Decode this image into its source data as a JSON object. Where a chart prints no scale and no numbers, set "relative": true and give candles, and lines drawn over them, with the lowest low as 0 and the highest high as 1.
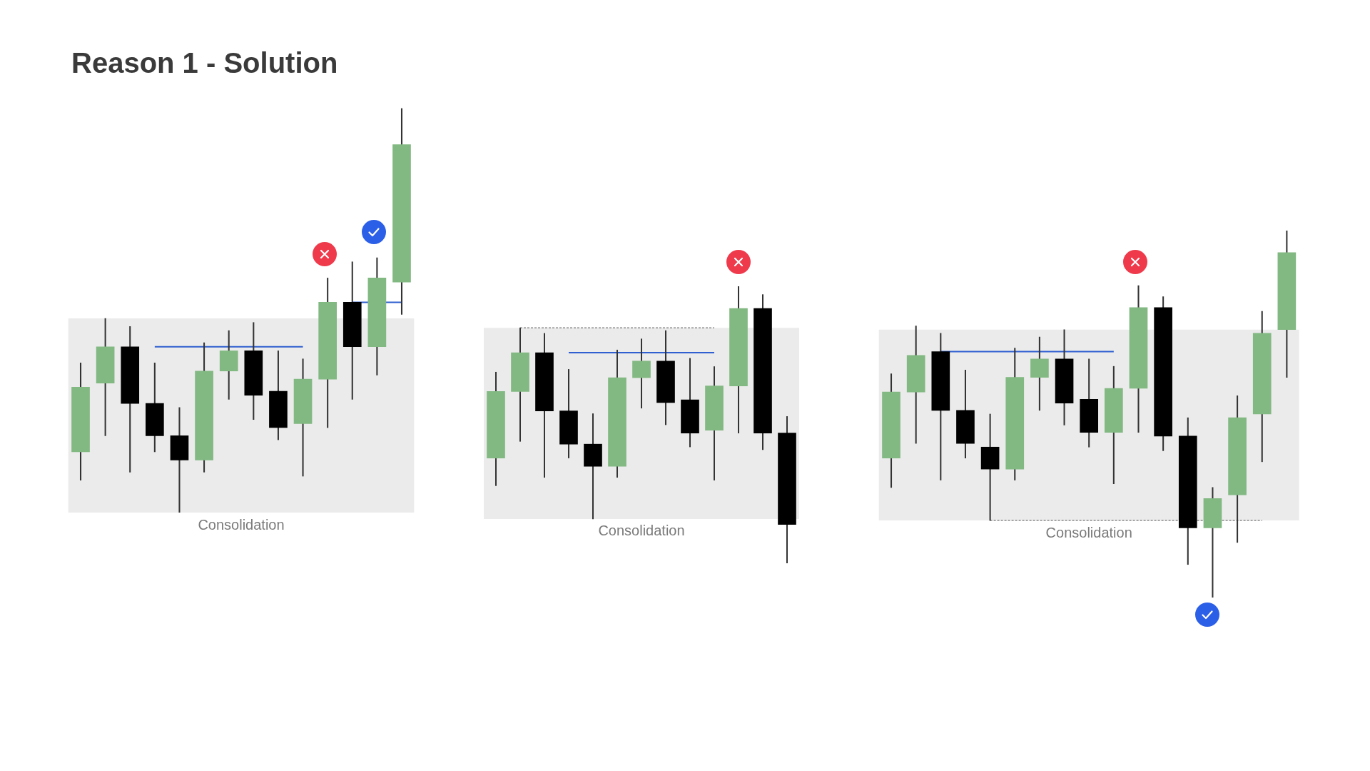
{
  "chart_data": [
    {
      "type": "candlestick",
      "title": "Reason 1 - Solution",
      "relative": true,
      "categories": [
        null,
        null,
        null,
        null,
        null,
        null,
        null,
        null,
        null,
        null,
        null,
        null,
        null,
        null
      ],
      "ohlc": [
        [
          0.15,
          0.37,
          0.08,
          0.31
        ],
        [
          0.32,
          0.48,
          0.19,
          0.41
        ],
        [
          0.41,
          0.46,
          0.1,
          0.27
        ],
        [
          0.27,
          0.37,
          0.15,
          0.19
        ],
        [
          0.19,
          0.26,
          0,
          0.13
        ],
        [
          0.13,
          0.42,
          0.1,
          0.35
        ],
        [
          0.35,
          0.45,
          0.28,
          0.4
        ],
        [
          0.4,
          0.47,
          0.23,
          0.29
        ],
        [
          0.3,
          0.4,
          0.18,
          0.21
        ],
        [
          0.22,
          0.38,
          0.09,
          0.33
        ],
        [
          0.33,
          0.58,
          0.21,
          0.52
        ],
        [
          0.52,
          0.62,
          0.28,
          0.41
        ],
        [
          0.41,
          0.63,
          0.34,
          0.58
        ],
        [
          0.57,
          1,
          0.49,
          0.91
        ]
      ],
      "colors": [
        "#82b882",
        "#82b882",
        "#000000",
        "#000000",
        "#000000",
        "#82b882",
        "#82b882",
        "#000000",
        "#000000",
        "#82b882",
        "#82b882",
        "#000000",
        "#82b882",
        "#82b882"
      ],
      "series": [
        {
          "type": "line",
          "color": "#2f5fd0",
          "values": [
            null,
            null,
            null,
            0.41,
            0.41,
            0.41,
            0.41,
            0.41,
            0.41,
            0.41,
            null,
            null,
            null,
            null
          ]
        },
        {
          "type": "line",
          "color": "#2f5fd0",
          "values": [
            null,
            null,
            null,
            null,
            null,
            null,
            null,
            null,
            null,
            null,
            null,
            0.52,
            null,
            0.52
          ]
        }
      ],
      "bands": [
        {
          "axis": "y",
          "from": 0,
          "to": 0.48,
          "label": "Consolidation",
          "color": "#ebebeb"
        }
      ]
    },
    {
      "type": "candlestick",
      "relative": true,
      "categories": [
        null,
        null,
        null,
        null,
        null,
        null,
        null,
        null,
        null,
        null,
        null,
        null,
        null
      ],
      "ohlc": [
        [
          0.38,
          0.69,
          0.28,
          0.62
        ],
        [
          0.62,
          0.85,
          0.44,
          0.76
        ],
        [
          0.76,
          0.83,
          0.31,
          0.55
        ],
        [
          0.55,
          0.7,
          0.38,
          0.43
        ],
        [
          0.43,
          0.54,
          0.16,
          0.35
        ],
        [
          0.35,
          0.77,
          0.31,
          0.67
        ],
        [
          0.67,
          0.81,
          0.56,
          0.73
        ],
        [
          0.73,
          0.84,
          0.5,
          0.58
        ],
        [
          0.59,
          0.74,
          0.42,
          0.47
        ],
        [
          0.48,
          0.71,
          0.3,
          0.64
        ],
        [
          0.64,
          1,
          0.47,
          0.92
        ],
        [
          0.92,
          0.97,
          0.41,
          0.47
        ],
        [
          0.47,
          0.53,
          0,
          0.14
        ]
      ],
      "colors": [
        "#82b882",
        "#82b882",
        "#000000",
        "#000000",
        "#000000",
        "#82b882",
        "#82b882",
        "#000000",
        "#000000",
        "#82b882",
        "#82b882",
        "#000000",
        "#000000"
      ],
      "series": [
        {
          "type": "line",
          "color": "#2f5fd0",
          "values": [
            null,
            null,
            null,
            0.76,
            0.76,
            0.76,
            0.76,
            0.76,
            0.76,
            0.76,
            null,
            null,
            null
          ]
        },
        {
          "type": "line",
          "color": "#8a8a8a",
          "line_style": "dotted",
          "values": [
            null,
            0.85,
            0.85,
            0.85,
            0.85,
            0.85,
            0.85,
            0.85,
            0.85,
            0.85,
            null,
            null,
            null
          ]
        }
      ],
      "bands": [
        {
          "axis": "y",
          "from": 0.16,
          "to": 0.85,
          "label": "Consolidation",
          "color": "#ebebeb"
        }
      ]
    },
    {
      "type": "candlestick",
      "relative": true,
      "categories": [
        null,
        null,
        null,
        null,
        null,
        null,
        null,
        null,
        null,
        null,
        null,
        null,
        null,
        null,
        null,
        null,
        null
      ],
      "ohlc": [
        [
          0.38,
          0.61,
          0.3,
          0.56
        ],
        [
          0.56,
          0.74,
          0.42,
          0.66
        ],
        [
          0.67,
          0.72,
          0.32,
          0.51
        ],
        [
          0.51,
          0.62,
          0.38,
          0.42
        ],
        [
          0.41,
          0.5,
          0.21,
          0.35
        ],
        [
          0.35,
          0.68,
          0.32,
          0.6
        ],
        [
          0.6,
          0.71,
          0.51,
          0.65
        ],
        [
          0.65,
          0.73,
          0.47,
          0.53
        ],
        [
          0.54,
          0.65,
          0.41,
          0.45
        ],
        [
          0.45,
          0.63,
          0.31,
          0.57
        ],
        [
          0.57,
          0.85,
          0.45,
          0.79
        ],
        [
          0.79,
          0.82,
          0.4,
          0.44
        ],
        [
          0.44,
          0.49,
          0.09,
          0.19
        ],
        [
          0.19,
          0.3,
          0,
          0.27
        ],
        [
          0.28,
          0.55,
          0.15,
          0.49
        ],
        [
          0.5,
          0.78,
          0.37,
          0.72
        ],
        [
          0.73,
          1,
          0.6,
          0.94
        ]
      ],
      "colors": [
        "#82b882",
        "#82b882",
        "#000000",
        "#000000",
        "#000000",
        "#82b882",
        "#82b882",
        "#000000",
        "#000000",
        "#82b882",
        "#82b882",
        "#000000",
        "#000000",
        "#82b882",
        "#82b882",
        "#82b882",
        "#82b882"
      ],
      "series": [
        {
          "type": "line",
          "color": "#2f5fd0",
          "values": [
            null,
            null,
            0.67,
            0.67,
            0.67,
            0.67,
            0.67,
            0.67,
            0.67,
            0.67,
            null,
            null,
            null,
            null,
            null,
            null,
            null
          ]
        },
        {
          "type": "line",
          "color": "#8a8a8a",
          "line_style": "dotted",
          "values": [
            null,
            null,
            null,
            null,
            0.21,
            0.21,
            0.21,
            0.21,
            0.21,
            0.21,
            0.21,
            0.21,
            null,
            null,
            0.21,
            0.21,
            null
          ]
        }
      ],
      "bands": [
        {
          "axis": "y",
          "from": 0.21,
          "to": 0.73,
          "label": "Consolidation",
          "color": "#ebebeb"
        }
      ]
    }
  ]
}
